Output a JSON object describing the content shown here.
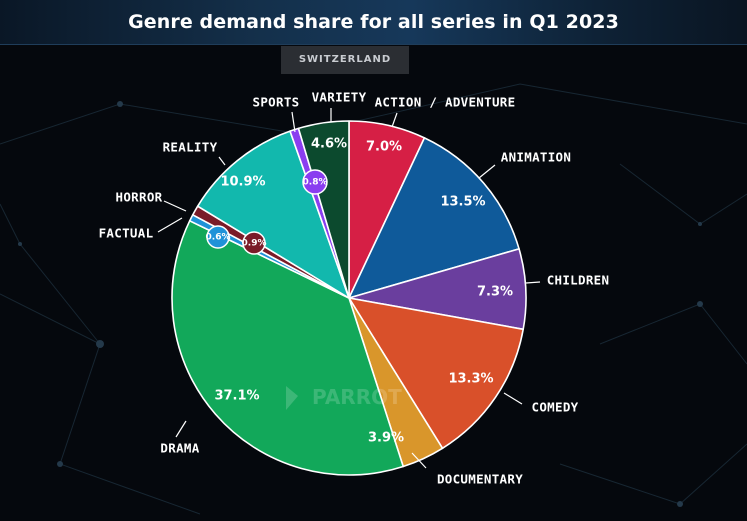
{
  "title": "Genre demand share for all series in Q1 2023",
  "badge": "SWITZERLAND",
  "watermark": "PARROT",
  "chart_data": {
    "type": "pie",
    "title": "Genre demand share for all series in Q1 2023",
    "subtitle": "SWITZERLAND",
    "slices": [
      {
        "label": "ACTION / ADVENTURE",
        "value": 7.0,
        "display": "7.0%",
        "color": "#d61f45"
      },
      {
        "label": "ANIMATION",
        "value": 13.5,
        "display": "13.5%",
        "color": "#0f5a9a"
      },
      {
        "label": "CHILDREN",
        "value": 7.3,
        "display": "7.3%",
        "color": "#6a3e9e"
      },
      {
        "label": "COMEDY",
        "value": 13.3,
        "display": "13.3%",
        "color": "#d9502a"
      },
      {
        "label": "DOCUMENTARY",
        "value": 3.9,
        "display": "3.9%",
        "color": "#d9962b"
      },
      {
        "label": "DRAMA",
        "value": 37.1,
        "display": "37.1%",
        "color": "#12a85a"
      },
      {
        "label": "FACTUAL",
        "value": 0.6,
        "display": "0.6%",
        "color": "#1f92d8"
      },
      {
        "label": "HORROR",
        "value": 0.9,
        "display": "0.9%",
        "color": "#7a1b28"
      },
      {
        "label": "REALITY",
        "value": 10.9,
        "display": "10.9%",
        "color": "#12b8ad"
      },
      {
        "label": "SPORTS",
        "value": 0.8,
        "display": "0.8%",
        "color": "#8a3df0"
      },
      {
        "label": "VARIETY",
        "value": 4.6,
        "display": "4.6%",
        "color": "#0c4a2e"
      }
    ]
  }
}
